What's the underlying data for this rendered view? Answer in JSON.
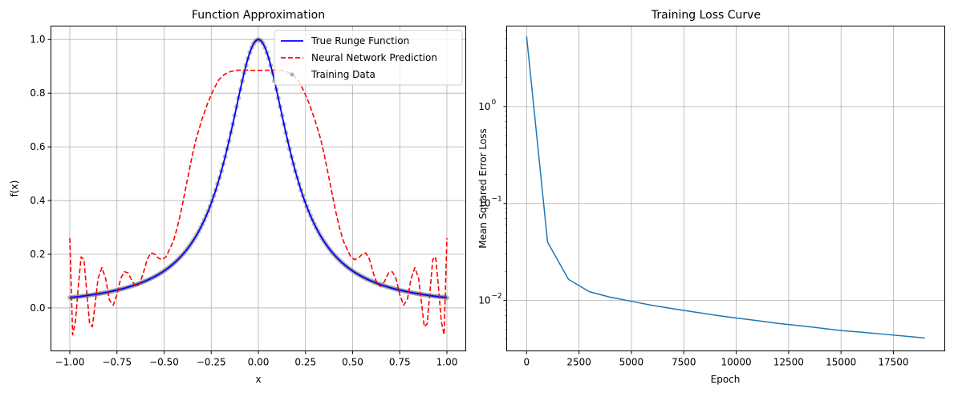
{
  "chart_data": [
    {
      "type": "line",
      "title": "Function Approximation",
      "xlabel": "x",
      "ylabel": "f(x)",
      "xlim": [
        -1.1,
        1.1
      ],
      "ylim": [
        -0.16,
        1.05
      ],
      "xticks": [
        -1.0,
        -0.75,
        -0.5,
        -0.25,
        0.0,
        0.25,
        0.5,
        0.75,
        1.0
      ],
      "xtick_labels": [
        "−1.00",
        "−0.75",
        "−0.50",
        "−0.25",
        "0.00",
        "0.25",
        "0.50",
        "0.75",
        "1.00"
      ],
      "yticks": [
        0.0,
        0.2,
        0.4,
        0.6,
        0.8,
        1.0
      ],
      "ytick_labels": [
        "0.0",
        "0.2",
        "0.4",
        "0.6",
        "0.8",
        "1.0"
      ],
      "grid": true,
      "legend_position": "top-right",
      "series": [
        {
          "name": "True Runge Function",
          "kind": "line",
          "color": "#0000ff",
          "style": "solid",
          "function": "1/(1+25x^2)",
          "x_range": [
            -1.0,
            1.0
          ]
        },
        {
          "name": "Neural Network Prediction",
          "kind": "line",
          "color": "#ff0000",
          "style": "dashed",
          "x": [
            -1.0,
            -0.985,
            -0.97,
            -0.955,
            -0.94,
            -0.925,
            -0.91,
            -0.895,
            -0.88,
            -0.865,
            -0.85,
            -0.83,
            -0.81,
            -0.79,
            -0.77,
            -0.75,
            -0.73,
            -0.71,
            -0.69,
            -0.67,
            -0.65,
            -0.63,
            -0.61,
            -0.59,
            -0.57,
            -0.55,
            -0.53,
            -0.51,
            -0.49,
            -0.47,
            -0.45,
            -0.43,
            -0.41,
            -0.39,
            -0.37,
            -0.35,
            -0.33,
            -0.3,
            -0.27,
            -0.24,
            -0.21,
            -0.18,
            -0.15,
            -0.12,
            -0.09,
            -0.06,
            -0.03,
            0.0,
            0.03,
            0.06,
            0.09,
            0.12,
            0.15,
            0.18,
            0.21,
            0.24,
            0.27,
            0.3,
            0.33,
            0.35,
            0.37,
            0.39,
            0.41,
            0.43,
            0.45,
            0.47,
            0.49,
            0.51,
            0.53,
            0.55,
            0.57,
            0.59,
            0.61,
            0.63,
            0.65,
            0.67,
            0.69,
            0.71,
            0.73,
            0.75,
            0.77,
            0.79,
            0.81,
            0.83,
            0.85,
            0.865,
            0.88,
            0.895,
            0.91,
            0.925,
            0.94,
            0.955,
            0.97,
            0.985,
            1.0
          ],
          "y": [
            0.26,
            -0.1,
            -0.05,
            0.08,
            0.19,
            0.18,
            0.06,
            -0.06,
            -0.07,
            0.02,
            0.11,
            0.15,
            0.11,
            0.03,
            0.01,
            0.05,
            0.11,
            0.135,
            0.13,
            0.1,
            0.08,
            0.09,
            0.13,
            0.18,
            0.205,
            0.2,
            0.185,
            0.18,
            0.19,
            0.22,
            0.25,
            0.3,
            0.36,
            0.43,
            0.5,
            0.57,
            0.63,
            0.7,
            0.76,
            0.81,
            0.85,
            0.87,
            0.88,
            0.885,
            0.886,
            0.886,
            0.885,
            0.885,
            0.885,
            0.886,
            0.886,
            0.885,
            0.88,
            0.87,
            0.85,
            0.81,
            0.76,
            0.7,
            0.63,
            0.57,
            0.5,
            0.43,
            0.36,
            0.3,
            0.25,
            0.22,
            0.19,
            0.18,
            0.185,
            0.2,
            0.205,
            0.18,
            0.13,
            0.09,
            0.08,
            0.1,
            0.13,
            0.135,
            0.11,
            0.05,
            0.01,
            0.03,
            0.11,
            0.15,
            0.11,
            0.02,
            -0.07,
            -0.06,
            0.06,
            0.18,
            0.19,
            0.08,
            -0.05,
            -0.1,
            0.26
          ]
        },
        {
          "name": "Training Data",
          "kind": "scatter",
          "color": "#808080",
          "function": "1/(1+25x^2)",
          "x_range": [
            -1.0,
            1.0
          ],
          "count": 200
        }
      ]
    },
    {
      "type": "line",
      "title": "Training Loss Curve",
      "xlabel": "Epoch",
      "ylabel": "Mean Squared Error Loss",
      "xlim": [
        -950,
        19950
      ],
      "ylim_log10": [
        -2.52,
        0.83
      ],
      "yscale": "log",
      "xticks": [
        0,
        2500,
        5000,
        7500,
        10000,
        12500,
        15000,
        17500
      ],
      "xtick_labels": [
        "0",
        "2500",
        "5000",
        "7500",
        "10000",
        "12500",
        "15000",
        "17500"
      ],
      "ytick_exponents": [
        -2,
        -1,
        0
      ],
      "grid": true,
      "series": [
        {
          "kind": "line",
          "color": "#1f77b4",
          "x": [
            0,
            1000,
            2000,
            3000,
            4000,
            5000,
            6000,
            7000,
            8000,
            9000,
            10000,
            11000,
            12000,
            13000,
            14000,
            15000,
            16000,
            17000,
            18000,
            19000
          ],
          "y": [
            5.3,
            0.04,
            0.0165,
            0.0123,
            0.0108,
            0.0098,
            0.0089,
            0.0082,
            0.0076,
            0.00705,
            0.0066,
            0.0062,
            0.0058,
            0.0055,
            0.0052,
            0.0049,
            0.0047,
            0.0045,
            0.0043,
            0.0041
          ]
        }
      ]
    }
  ]
}
